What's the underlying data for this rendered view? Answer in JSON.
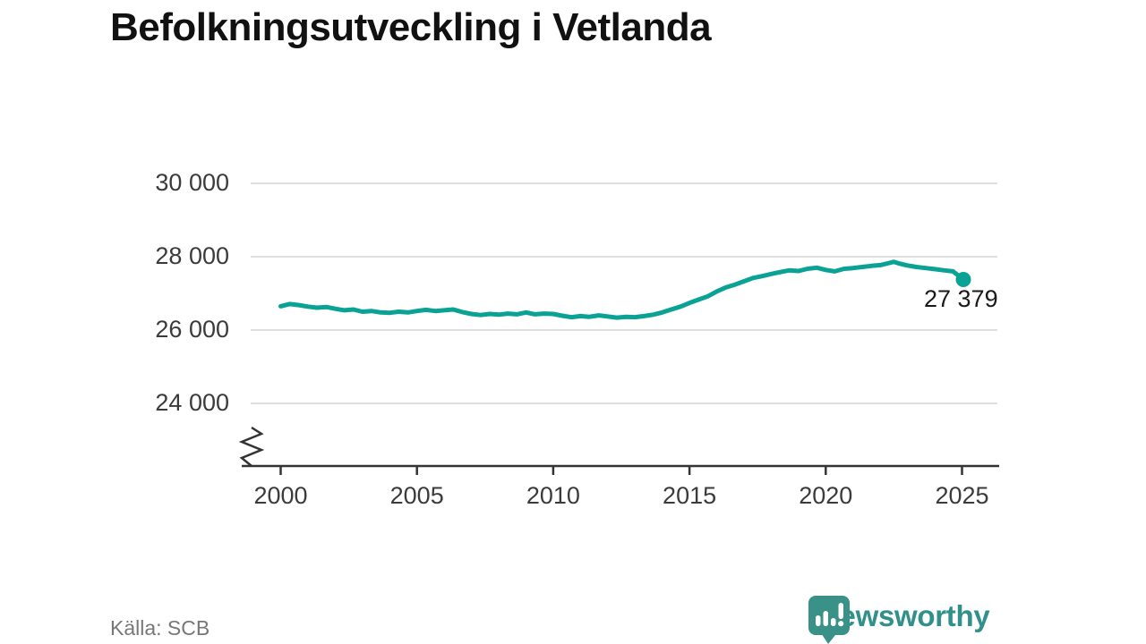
{
  "title": "Befolkningsutveckling i Vetlanda",
  "source_label": "Källa: SCB",
  "logo": {
    "brand": "Newsworthy",
    "icon": "chart-speech-bubble-icon"
  },
  "colors": {
    "line": "#0aa295",
    "logo_teal": "#31908a",
    "bubble_teal": "#3a9188",
    "grid": "#dedede",
    "axis": "#333333",
    "text_dark": "#1a1a1a",
    "text_gray": "#777777"
  },
  "annotation": {
    "last_value_label": "27 379"
  },
  "chart_data": {
    "type": "line",
    "title": "Befolkningsutveckling i Vetlanda",
    "xlabel": "",
    "ylabel": "",
    "grid": "horizontal",
    "legend": "none",
    "axis_break_bottom_left": true,
    "ylim_shown": [
      23200,
      30500
    ],
    "xlim_shown": [
      1998.6,
      2026.4
    ],
    "yticks": [
      24000,
      26000,
      28000,
      30000
    ],
    "ytick_labels": [
      "24 000",
      "26 000",
      "28 000",
      "30 000"
    ],
    "xticks": [
      2000,
      2005,
      2010,
      2015,
      2020,
      2025
    ],
    "xtick_labels": [
      "2000",
      "2005",
      "2010",
      "2015",
      "2020",
      "2025"
    ],
    "last_point": {
      "x": 2025.05,
      "y": 27379,
      "label": "27 379"
    },
    "series": [
      {
        "name": "Befolkning",
        "points": [
          [
            2000.0,
            26650
          ],
          [
            2000.33,
            26710
          ],
          [
            2000.67,
            26680
          ],
          [
            2001.0,
            26640
          ],
          [
            2001.33,
            26610
          ],
          [
            2001.67,
            26630
          ],
          [
            2002.0,
            26580
          ],
          [
            2002.33,
            26540
          ],
          [
            2002.67,
            26560
          ],
          [
            2003.0,
            26500
          ],
          [
            2003.33,
            26520
          ],
          [
            2003.67,
            26480
          ],
          [
            2004.0,
            26470
          ],
          [
            2004.33,
            26500
          ],
          [
            2004.67,
            26480
          ],
          [
            2005.0,
            26520
          ],
          [
            2005.33,
            26550
          ],
          [
            2005.67,
            26520
          ],
          [
            2006.0,
            26540
          ],
          [
            2006.33,
            26560
          ],
          [
            2006.67,
            26490
          ],
          [
            2007.0,
            26440
          ],
          [
            2007.33,
            26410
          ],
          [
            2007.67,
            26440
          ],
          [
            2008.0,
            26420
          ],
          [
            2008.33,
            26450
          ],
          [
            2008.67,
            26430
          ],
          [
            2009.0,
            26480
          ],
          [
            2009.33,
            26430
          ],
          [
            2009.67,
            26450
          ],
          [
            2010.0,
            26440
          ],
          [
            2010.33,
            26390
          ],
          [
            2010.67,
            26350
          ],
          [
            2011.0,
            26380
          ],
          [
            2011.33,
            26360
          ],
          [
            2011.67,
            26400
          ],
          [
            2012.0,
            26370
          ],
          [
            2012.33,
            26340
          ],
          [
            2012.67,
            26360
          ],
          [
            2013.0,
            26350
          ],
          [
            2013.33,
            26380
          ],
          [
            2013.67,
            26420
          ],
          [
            2014.0,
            26480
          ],
          [
            2014.33,
            26560
          ],
          [
            2014.67,
            26640
          ],
          [
            2015.0,
            26740
          ],
          [
            2015.33,
            26830
          ],
          [
            2015.67,
            26920
          ],
          [
            2016.0,
            27050
          ],
          [
            2016.33,
            27160
          ],
          [
            2016.67,
            27240
          ],
          [
            2017.0,
            27330
          ],
          [
            2017.33,
            27420
          ],
          [
            2017.67,
            27470
          ],
          [
            2018.0,
            27530
          ],
          [
            2018.33,
            27580
          ],
          [
            2018.67,
            27630
          ],
          [
            2019.0,
            27610
          ],
          [
            2019.33,
            27670
          ],
          [
            2019.67,
            27700
          ],
          [
            2020.0,
            27640
          ],
          [
            2020.33,
            27600
          ],
          [
            2020.67,
            27670
          ],
          [
            2021.0,
            27690
          ],
          [
            2021.33,
            27720
          ],
          [
            2021.67,
            27750
          ],
          [
            2022.0,
            27770
          ],
          [
            2022.33,
            27830
          ],
          [
            2022.5,
            27860
          ],
          [
            2022.67,
            27820
          ],
          [
            2023.0,
            27760
          ],
          [
            2023.33,
            27720
          ],
          [
            2023.67,
            27690
          ],
          [
            2024.0,
            27660
          ],
          [
            2024.33,
            27630
          ],
          [
            2024.67,
            27600
          ],
          [
            2025.05,
            27379
          ]
        ]
      }
    ]
  }
}
